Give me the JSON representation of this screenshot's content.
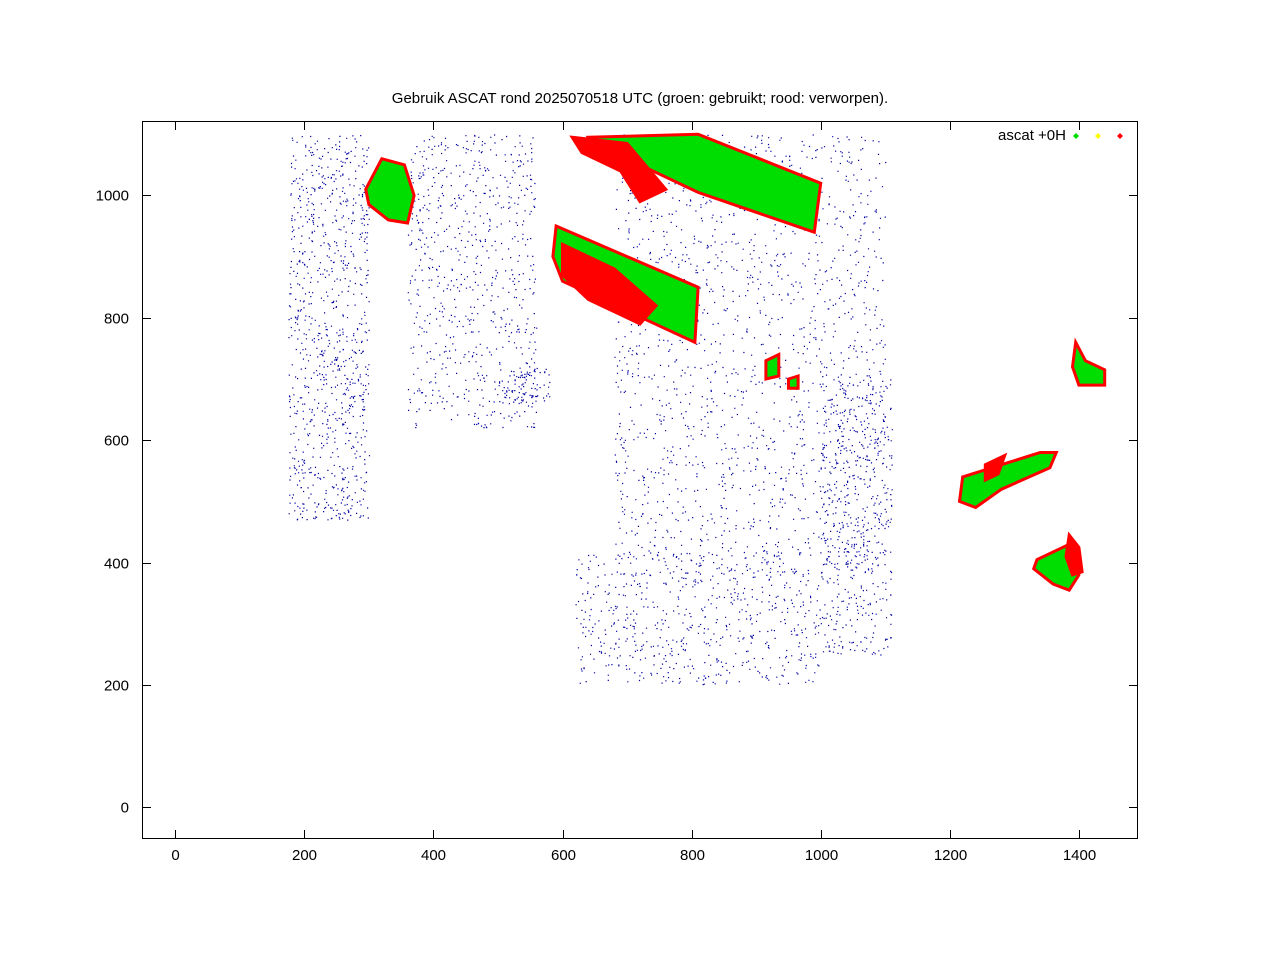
{
  "chart_data": {
    "type": "scatter",
    "title": "Gebruik ASCAT rond 2025070518 UTC (groen: gebruikt; rood: verworpen).",
    "xlabel": "",
    "ylabel": "",
    "xlim": [
      -50,
      1490
    ],
    "ylim": [
      -50,
      1120
    ],
    "xticks": [
      0,
      200,
      400,
      600,
      800,
      1000,
      1200,
      1400
    ],
    "yticks": [
      0,
      200,
      400,
      600,
      800,
      1000
    ],
    "grid": false,
    "legend": {
      "placement": "top-right",
      "label": "ascat +0H",
      "colors": [
        "#00dd00",
        "#ffff00",
        "#ff0000"
      ]
    },
    "colors": {
      "used": "#00dd00",
      "rejected": "#ff0000",
      "coastline": "#0000a0"
    },
    "series": [
      {
        "name": "ascat +0H",
        "regions": [
          {
            "status": "used",
            "polygon": [
              [
                295,
                1010
              ],
              [
                320,
                1060
              ],
              [
                355,
                1050
              ],
              [
                370,
                1000
              ],
              [
                360,
                955
              ],
              [
                330,
                960
              ],
              [
                300,
                985
              ]
            ]
          },
          {
            "status": "used",
            "polygon": [
              [
                640,
                1095
              ],
              [
                810,
                1100
              ],
              [
                1000,
                1020
              ],
              [
                990,
                940
              ],
              [
                810,
                1005
              ],
              [
                710,
                1055
              ],
              [
                650,
                1080
              ]
            ]
          },
          {
            "status": "rejected",
            "polygon": [
              [
                615,
                1095
              ],
              [
                700,
                1085
              ],
              [
                760,
                1010
              ],
              [
                720,
                990
              ],
              [
                690,
                1040
              ],
              [
                630,
                1070
              ]
            ]
          },
          {
            "status": "used",
            "polygon": [
              [
                590,
                950
              ],
              [
                810,
                850
              ],
              [
                805,
                760
              ],
              [
                600,
                860
              ],
              [
                585,
                900
              ]
            ]
          },
          {
            "status": "rejected",
            "polygon": [
              [
                600,
                920
              ],
              [
                680,
                880
              ],
              [
                745,
                820
              ],
              [
                720,
                790
              ],
              [
                640,
                830
              ],
              [
                600,
                870
              ]
            ]
          },
          {
            "status": "used",
            "polygon": [
              [
                915,
                730
              ],
              [
                935,
                740
              ],
              [
                935,
                705
              ],
              [
                915,
                700
              ]
            ]
          },
          {
            "status": "used",
            "polygon": [
              [
                950,
                700
              ],
              [
                965,
                705
              ],
              [
                965,
                685
              ],
              [
                950,
                685
              ]
            ]
          },
          {
            "status": "used",
            "polygon": [
              [
                1395,
                760
              ],
              [
                1410,
                730
              ],
              [
                1440,
                715
              ],
              [
                1440,
                690
              ],
              [
                1400,
                690
              ],
              [
                1390,
                720
              ]
            ]
          },
          {
            "status": "used",
            "polygon": [
              [
                1220,
                540
              ],
              [
                1280,
                560
              ],
              [
                1340,
                580
              ],
              [
                1365,
                580
              ],
              [
                1355,
                555
              ],
              [
                1280,
                520
              ],
              [
                1240,
                490
              ],
              [
                1215,
                500
              ]
            ]
          },
          {
            "status": "rejected",
            "polygon": [
              [
                1255,
                560
              ],
              [
                1285,
                575
              ],
              [
                1275,
                545
              ],
              [
                1255,
                535
              ]
            ]
          },
          {
            "status": "used",
            "polygon": [
              [
                1335,
                405
              ],
              [
                1385,
                430
              ],
              [
                1400,
                380
              ],
              [
                1385,
                355
              ],
              [
                1360,
                365
              ],
              [
                1330,
                390
              ]
            ]
          },
          {
            "status": "rejected",
            "polygon": [
              [
                1385,
                445
              ],
              [
                1400,
                425
              ],
              [
                1405,
                385
              ],
              [
                1390,
                380
              ],
              [
                1380,
                410
              ]
            ]
          }
        ]
      }
    ]
  }
}
